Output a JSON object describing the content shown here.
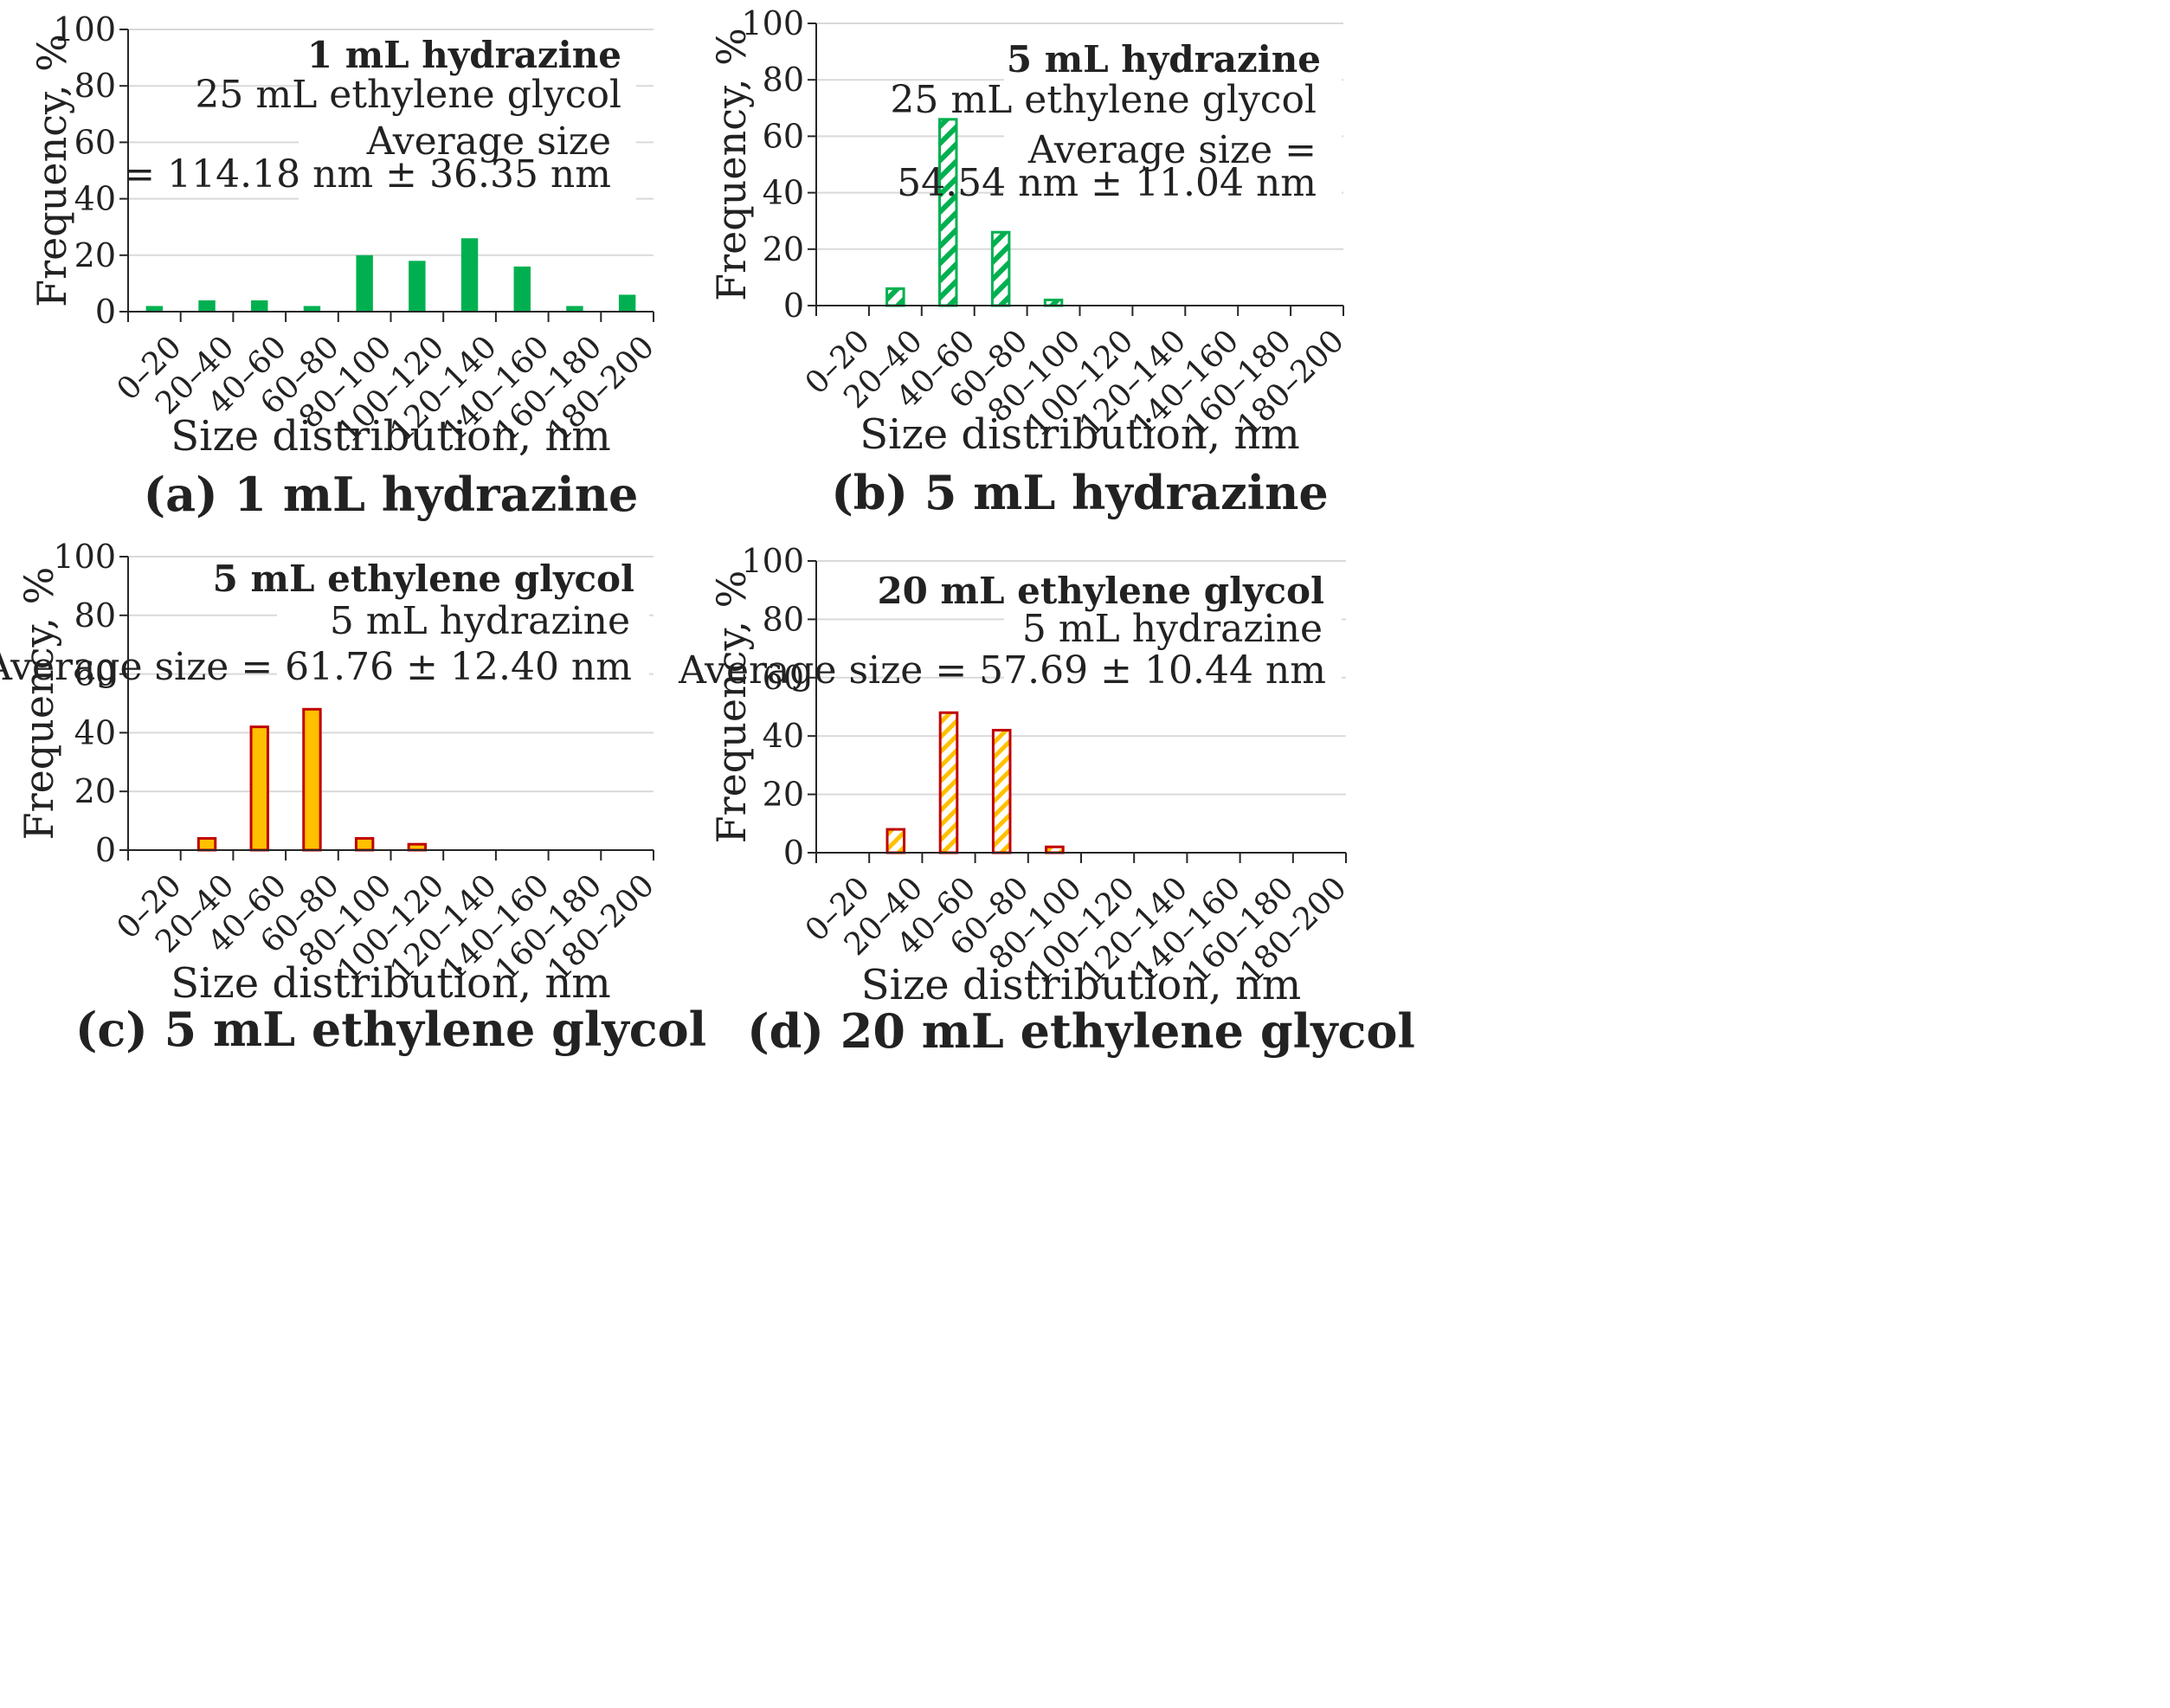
{
  "figure": {
    "x_categories": [
      "0–20",
      "20–40",
      "40–60",
      "60–80",
      "80–100",
      "100–120",
      "120–140",
      "140–160",
      "160–180",
      "180–200"
    ],
    "y_ticks": [
      0,
      20,
      40,
      60,
      80,
      100
    ],
    "colors": {
      "green": "#00b050",
      "orange": "#ffc000",
      "dark_red": "#c00000",
      "grid": "#d9d9d9",
      "axis": "#262626"
    }
  },
  "chart_data": [
    {
      "id": "a",
      "type": "bar",
      "panel_label": "(a) 1 mL hydrazine",
      "xlabel": "Size distribution, nm",
      "ylabel": "Frequency, %",
      "ylim": [
        0,
        100
      ],
      "grid": true,
      "categories": [
        "0–20",
        "20–40",
        "40–60",
        "60–80",
        "80–100",
        "100–120",
        "120–140",
        "140–160",
        "160–180",
        "180–200"
      ],
      "values": [
        2,
        4,
        4,
        2,
        20,
        18,
        26,
        16,
        2,
        6
      ],
      "style": "solid-green",
      "annotations": [
        "1 mL hydrazine",
        "25 mL ethylene glycol",
        "Average size",
        "= 114.18 nm ± 36.35 nm"
      ]
    },
    {
      "id": "b",
      "type": "bar",
      "panel_label": "(b) 5 mL hydrazine",
      "xlabel": "Size distribution, nm",
      "ylabel": "Frequency, %",
      "ylim": [
        0,
        100
      ],
      "grid": true,
      "categories": [
        "0–20",
        "20–40",
        "40–60",
        "60–80",
        "80–100",
        "100–120",
        "120–140",
        "140–160",
        "160–180",
        "180–200"
      ],
      "values": [
        0,
        6,
        66,
        26,
        2,
        0,
        0,
        0,
        0,
        0
      ],
      "style": "hatched-green",
      "annotations": [
        "5 mL hydrazine",
        "25 mL ethylene glycol",
        "Average size =",
        "54.54 nm ± 11.04 nm"
      ]
    },
    {
      "id": "c",
      "type": "bar",
      "panel_label": "(c) 5 mL ethylene glycol",
      "xlabel": "Size distribution, nm",
      "ylabel": "Frequency, %",
      "ylim": [
        0,
        100
      ],
      "grid": true,
      "categories": [
        "0–20",
        "20–40",
        "40–60",
        "60–80",
        "80–100",
        "100–120",
        "120–140",
        "140–160",
        "160–180",
        "180–200"
      ],
      "values": [
        0,
        4,
        42,
        48,
        4,
        2,
        0,
        0,
        0,
        0
      ],
      "style": "solid-orange",
      "annotations": [
        "5 mL ethylene glycol",
        "5 mL hydrazine",
        "Average size = 61.76 ± 12.40 nm"
      ]
    },
    {
      "id": "d",
      "type": "bar",
      "panel_label": "(d) 20 mL ethylene glycol",
      "xlabel": "Size distribution, nm",
      "ylabel": "Frequency, %",
      "ylim": [
        0,
        100
      ],
      "grid": true,
      "categories": [
        "0–20",
        "20–40",
        "40–60",
        "60–80",
        "80–100",
        "100–120",
        "120–140",
        "140–160",
        "160–180",
        "180–200"
      ],
      "values": [
        0,
        8,
        48,
        42,
        2,
        0,
        0,
        0,
        0,
        0
      ],
      "style": "hatched-orange",
      "annotations": [
        "20 mL ethylene glycol",
        "5 mL hydrazine",
        "Average size = 57.69 ± 10.44 nm"
      ]
    }
  ]
}
